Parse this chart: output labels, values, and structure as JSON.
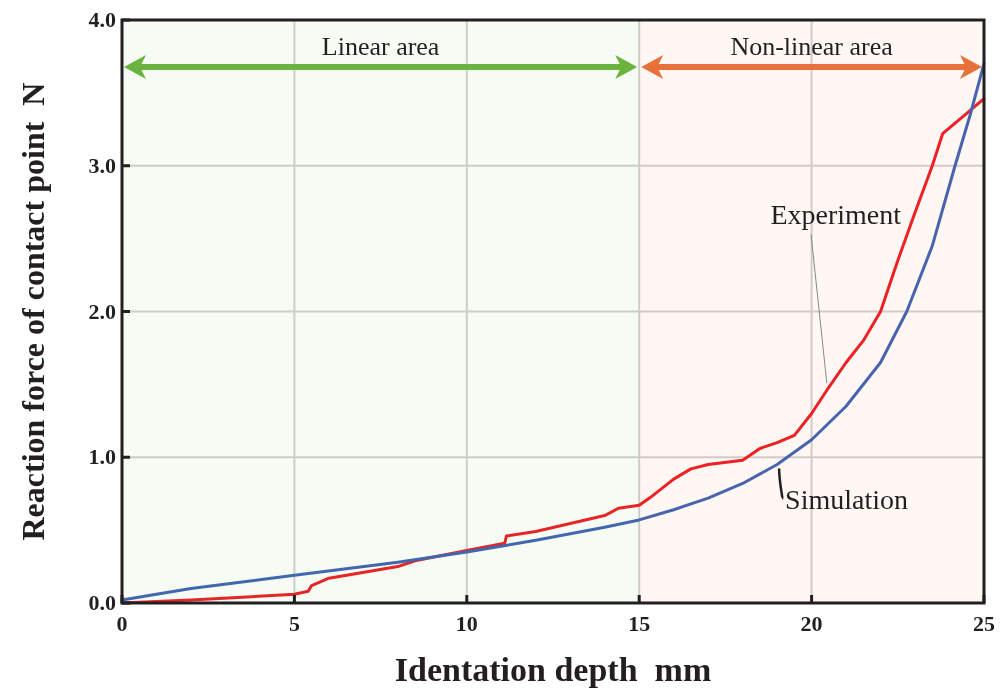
{
  "chart_data": {
    "type": "line",
    "xlabel": "Identation depth  mm",
    "ylabel": "Reaction force of contact point  N",
    "xlim": [
      0,
      25
    ],
    "ylim": [
      0,
      4
    ],
    "xticks": [
      0,
      5,
      10,
      15,
      20,
      25
    ],
    "yticks": [
      {
        "value": 0,
        "label": "0.0"
      },
      {
        "value": 1,
        "label": "1.0"
      },
      {
        "value": 2,
        "label": "2.0"
      },
      {
        "value": 3,
        "label": "3.0"
      },
      {
        "value": 4,
        "label": "4.0"
      }
    ],
    "grid": true,
    "marker": "none",
    "line_style": "solid",
    "bands": [
      {
        "axis": "x",
        "from": 0,
        "to": 15,
        "label": "Linear area",
        "color": "#6ab33e"
      },
      {
        "axis": "x",
        "from": 15,
        "to": 25,
        "label": "Non-linear area",
        "color": "#e8703a"
      }
    ],
    "series": [
      {
        "name": "Experiment",
        "color": "#ee1c25",
        "x": [
          0,
          2,
          5,
          5.4,
          5.5,
          6,
          8,
          8.5,
          10,
          11.1,
          11.15,
          12,
          14,
          14.4,
          15,
          15.3,
          16,
          16.5,
          17,
          18,
          18.5,
          19,
          19.5,
          20,
          20.5,
          21,
          21.5,
          22,
          22.5,
          23,
          23.5,
          23.8,
          24.5,
          25
        ],
        "values": [
          0,
          0.02,
          0.06,
          0.08,
          0.12,
          0.17,
          0.25,
          0.29,
          0.36,
          0.41,
          0.46,
          0.49,
          0.6,
          0.65,
          0.67,
          0.72,
          0.85,
          0.92,
          0.95,
          0.98,
          1.06,
          1.1,
          1.15,
          1.3,
          1.48,
          1.65,
          1.8,
          2.0,
          2.35,
          2.68,
          3.0,
          3.22,
          3.36,
          3.46
        ]
      },
      {
        "name": "Simulation",
        "color": "#3f63b5",
        "x": [
          0,
          2,
          5,
          8,
          10,
          12,
          14,
          15,
          16,
          17,
          18,
          19,
          20,
          21,
          22,
          22.76,
          23.5,
          24.16,
          24.6,
          25
        ],
        "values": [
          0.02,
          0.1,
          0.19,
          0.28,
          0.35,
          0.43,
          0.52,
          0.57,
          0.64,
          0.72,
          0.82,
          0.95,
          1.12,
          1.35,
          1.65,
          2.0,
          2.45,
          3.0,
          3.35,
          3.7
        ]
      }
    ]
  }
}
